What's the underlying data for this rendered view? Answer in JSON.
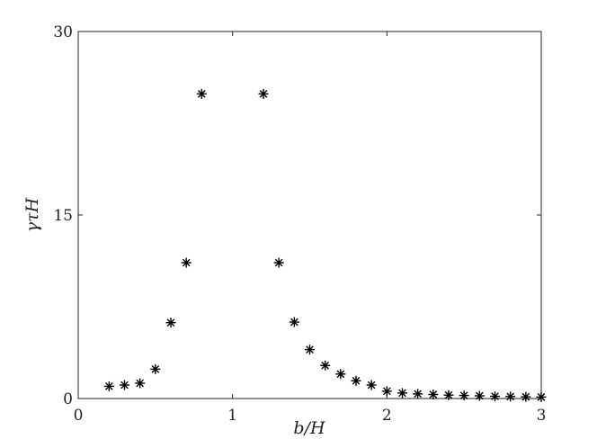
{
  "chart_data": {
    "type": "scatter",
    "xlabel": "b/H",
    "ylabel": "γτH",
    "x": [
      0.2,
      0.3,
      0.4,
      0.5,
      0.6,
      0.7,
      0.8,
      1.2,
      1.3,
      1.4,
      1.5,
      1.6,
      1.7,
      1.8,
      1.9,
      2.0,
      2.1,
      2.2,
      2.3,
      2.4,
      2.5,
      2.6,
      2.7,
      2.8,
      2.9,
      3.0
    ],
    "values": [
      1.0,
      1.1,
      1.25,
      2.4,
      6.2,
      11.1,
      24.9,
      24.9,
      11.1,
      6.25,
      4.0,
      2.7,
      2.0,
      1.45,
      1.1,
      0.6,
      0.45,
      0.38,
      0.33,
      0.28,
      0.25,
      0.22,
      0.18,
      0.16,
      0.14,
      0.12
    ],
    "color": "#000000",
    "xlim": [
      0,
      3
    ],
    "xticks": [
      0,
      1,
      2,
      3
    ],
    "ylim": [
      0,
      30
    ],
    "yticks": [
      0,
      15,
      30
    ]
  }
}
